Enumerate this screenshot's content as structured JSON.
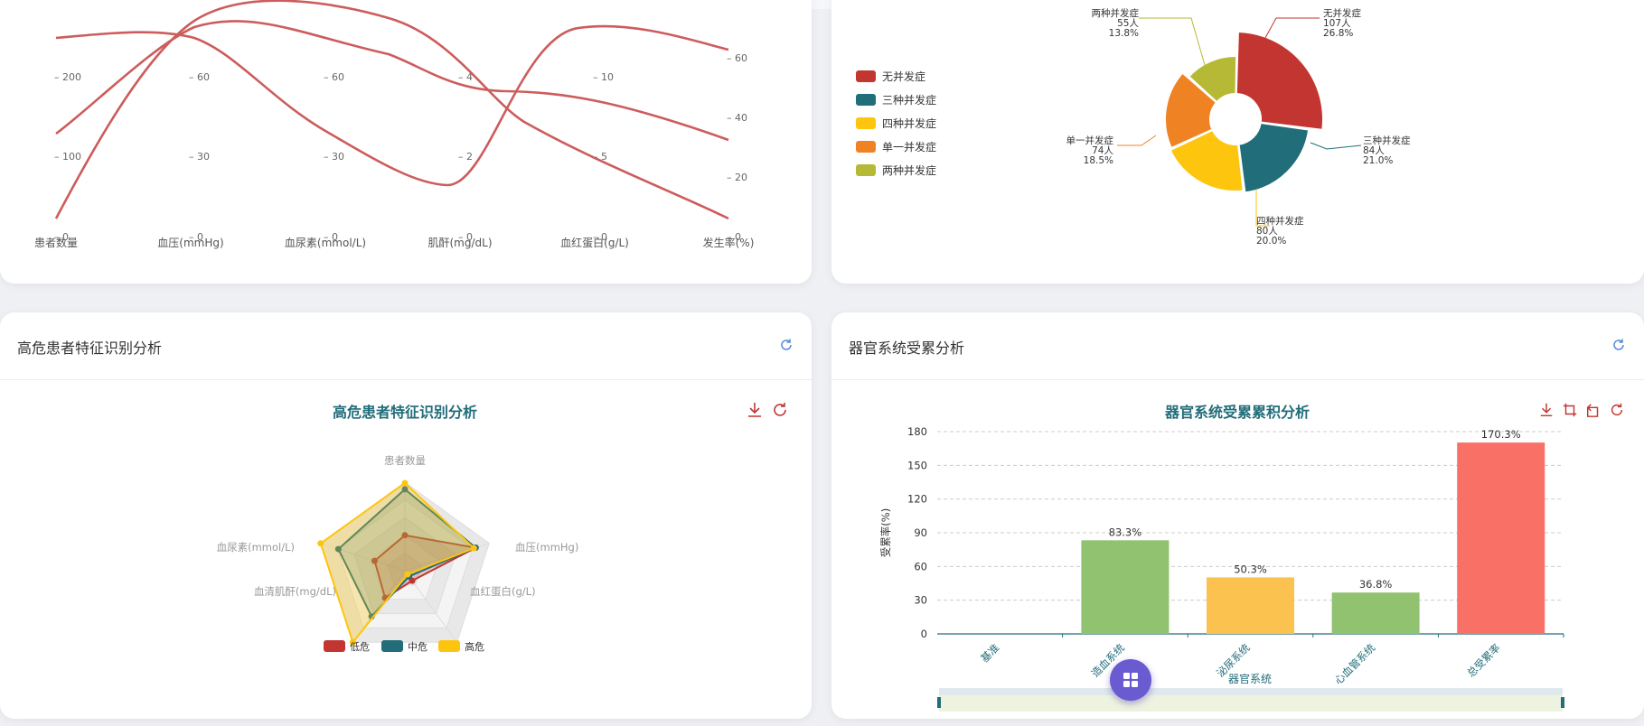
{
  "colors": {
    "red": "#c23531",
    "teal": "#216d7a",
    "yellow": "#fec50e",
    "orange": "#ef8323",
    "olive": "#b6b935",
    "bar_green": "#91c26f",
    "bar_yellow": "#fcc24f",
    "bar_red": "#f97166"
  },
  "parallel": {
    "axes": [
      "患者数量",
      "血压(mmHg)",
      "血尿素(mmol/L)",
      "肌酐(mg/dL)",
      "血红蛋白(g/L)",
      "发生率(%)"
    ],
    "ticks": [
      [
        "200",
        "100",
        "0"
      ],
      [
        "60",
        "30",
        "0"
      ],
      [
        "60",
        "30",
        "0"
      ],
      [
        "4",
        "2",
        "0"
      ],
      [
        "10",
        "5",
        "0"
      ],
      [
        "60",
        "40",
        "20",
        "0"
      ]
    ]
  },
  "pie": {
    "legend": [
      "无并发症",
      "三种并发症",
      "四种并发症",
      "单一并发症",
      "两种并发症"
    ],
    "labels": [
      {
        "name": "无并发症",
        "count": "107人",
        "pct": "26.8%"
      },
      {
        "name": "三种并发症",
        "count": "84人",
        "pct": "21.0%"
      },
      {
        "name": "四种并发症",
        "count": "80人",
        "pct": "20.0%"
      },
      {
        "name": "单一并发症",
        "count": "74人",
        "pct": "18.5%"
      },
      {
        "name": "两种并发症",
        "count": "55人",
        "pct": "13.8%"
      }
    ]
  },
  "left_card": {
    "title": "高危患者特征识别分析",
    "chart_title": "高危患者特征识别分析"
  },
  "right_card": {
    "title": "器官系统受累分析",
    "chart_title": "器官系统受累累积分析"
  },
  "chart_data": [
    {
      "type": "radar",
      "indicators": [
        "患者数量",
        "血压(mmHg)",
        "血红蛋白(g/L)",
        "血清肌酐(mg/dL)",
        "血尿素(mmol/L)"
      ],
      "series": [
        {
          "name": "低危",
          "values": [
            0.4,
            0.84,
            0.14,
            0.38,
            0.36
          ]
        },
        {
          "name": "中危",
          "values": [
            0.92,
            0.84,
            0.08,
            0.64,
            0.79
          ]
        },
        {
          "name": "高危",
          "values": [
            0.99,
            0.82,
            0.05,
            1.0,
            1.0
          ]
        }
      ],
      "legend": [
        "低危",
        "中危",
        "高危"
      ]
    },
    {
      "type": "bar",
      "categories": [
        "基准",
        "造血系统",
        "泌尿系统",
        "心血管系统",
        "总受累率"
      ],
      "values": [
        0,
        83.3,
        50.3,
        36.8,
        170.3
      ],
      "labels": [
        "",
        "83.3%",
        "50.3%",
        "36.8%",
        "170.3%"
      ],
      "yticks": [
        "0",
        "30",
        "60",
        "90",
        "120",
        "150",
        "180"
      ],
      "ylim": [
        0,
        180
      ],
      "xlabel": "器官系统",
      "ylabel": "受累率(%)"
    }
  ]
}
